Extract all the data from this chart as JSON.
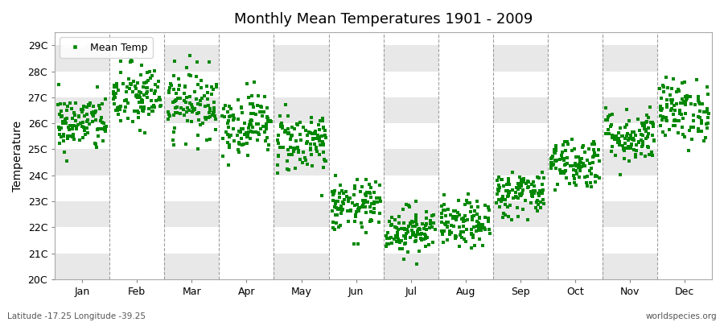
{
  "title": "Monthly Mean Temperatures 1901 - 2009",
  "ylabel": "Temperature",
  "y_tick_labels": [
    "20C",
    "21C",
    "22C",
    "23C",
    "24C",
    "25C",
    "26C",
    "27C",
    "28C",
    "29C"
  ],
  "y_tick_values": [
    20,
    21,
    22,
    23,
    24,
    25,
    26,
    27,
    28,
    29
  ],
  "ylim": [
    20,
    29.5
  ],
  "xlim": [
    0,
    12
  ],
  "months": [
    "Jan",
    "Feb",
    "Mar",
    "Apr",
    "May",
    "Jun",
    "Jul",
    "Aug",
    "Sep",
    "Oct",
    "Nov",
    "Dec"
  ],
  "month_positions": [
    0.5,
    1.5,
    2.5,
    3.5,
    4.5,
    5.5,
    6.5,
    7.5,
    8.5,
    9.5,
    10.5,
    11.5
  ],
  "legend_label": "Mean Temp",
  "marker_color": "#008800",
  "marker": "s",
  "marker_size": 2.5,
  "background_color": "#ffffff",
  "plot_bg_color": "#ffffff",
  "stripe_color": "#e8e8e8",
  "dashed_line_color": "#888888",
  "footer_left": "Latitude -17.25 Longitude -39.25",
  "footer_right": "worldspecies.org",
  "seed": 42,
  "num_years": 109,
  "monthly_means": [
    26.0,
    27.0,
    26.8,
    26.0,
    25.3,
    22.8,
    21.9,
    22.1,
    23.3,
    24.5,
    25.5,
    26.5
  ],
  "monthly_stds": [
    0.55,
    0.65,
    0.65,
    0.6,
    0.6,
    0.5,
    0.45,
    0.45,
    0.45,
    0.5,
    0.52,
    0.6
  ]
}
